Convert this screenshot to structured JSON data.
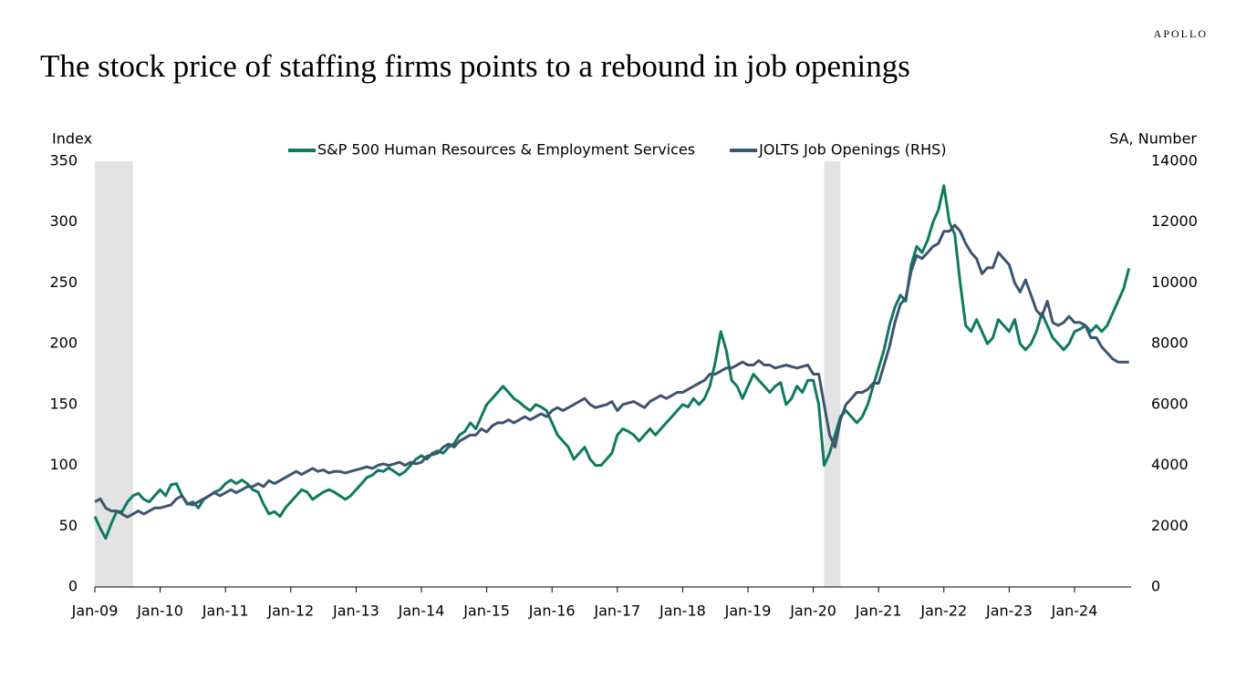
{
  "brand": "APOLLO",
  "chart_data": {
    "type": "line",
    "title": "The stock price of staffing firms points to a rebound in job openings",
    "ylabel": "Index",
    "y2label": "SA, Number",
    "x": [
      "2009-01",
      "2009-02",
      "2009-03",
      "2009-04",
      "2009-05",
      "2009-06",
      "2009-07",
      "2009-08",
      "2009-09",
      "2009-10",
      "2009-11",
      "2009-12",
      "2010-01",
      "2010-02",
      "2010-03",
      "2010-04",
      "2010-05",
      "2010-06",
      "2010-07",
      "2010-08",
      "2010-09",
      "2010-10",
      "2010-11",
      "2010-12",
      "2011-01",
      "2011-02",
      "2011-03",
      "2011-04",
      "2011-05",
      "2011-06",
      "2011-07",
      "2011-08",
      "2011-09",
      "2011-10",
      "2011-11",
      "2011-12",
      "2012-01",
      "2012-02",
      "2012-03",
      "2012-04",
      "2012-05",
      "2012-06",
      "2012-07",
      "2012-08",
      "2012-09",
      "2012-10",
      "2012-11",
      "2012-12",
      "2013-01",
      "2013-02",
      "2013-03",
      "2013-04",
      "2013-05",
      "2013-06",
      "2013-07",
      "2013-08",
      "2013-09",
      "2013-10",
      "2013-11",
      "2013-12",
      "2014-01",
      "2014-02",
      "2014-03",
      "2014-04",
      "2014-05",
      "2014-06",
      "2014-07",
      "2014-08",
      "2014-09",
      "2014-10",
      "2014-11",
      "2014-12",
      "2015-01",
      "2015-02",
      "2015-03",
      "2015-04",
      "2015-05",
      "2015-06",
      "2015-07",
      "2015-08",
      "2015-09",
      "2015-10",
      "2015-11",
      "2015-12",
      "2016-01",
      "2016-02",
      "2016-03",
      "2016-04",
      "2016-05",
      "2016-06",
      "2016-07",
      "2016-08",
      "2016-09",
      "2016-10",
      "2016-11",
      "2016-12",
      "2017-01",
      "2017-02",
      "2017-03",
      "2017-04",
      "2017-05",
      "2017-06",
      "2017-07",
      "2017-08",
      "2017-09",
      "2017-10",
      "2017-11",
      "2017-12",
      "2018-01",
      "2018-02",
      "2018-03",
      "2018-04",
      "2018-05",
      "2018-06",
      "2018-07",
      "2018-08",
      "2018-09",
      "2018-10",
      "2018-11",
      "2018-12",
      "2019-01",
      "2019-02",
      "2019-03",
      "2019-04",
      "2019-05",
      "2019-06",
      "2019-07",
      "2019-08",
      "2019-09",
      "2019-10",
      "2019-11",
      "2019-12",
      "2020-01",
      "2020-02",
      "2020-03",
      "2020-04",
      "2020-05",
      "2020-06",
      "2020-07",
      "2020-08",
      "2020-09",
      "2020-10",
      "2020-11",
      "2020-12",
      "2021-01",
      "2021-02",
      "2021-03",
      "2021-04",
      "2021-05",
      "2021-06",
      "2021-07",
      "2021-08",
      "2021-09",
      "2021-10",
      "2021-11",
      "2021-12",
      "2022-01",
      "2022-02",
      "2022-03",
      "2022-04",
      "2022-05",
      "2022-06",
      "2022-07",
      "2022-08",
      "2022-09",
      "2022-10",
      "2022-11",
      "2022-12",
      "2023-01",
      "2023-02",
      "2023-03",
      "2023-04",
      "2023-05",
      "2023-06",
      "2023-07",
      "2023-08",
      "2023-09",
      "2023-10",
      "2023-11",
      "2023-12",
      "2024-01",
      "2024-02",
      "2024-03",
      "2024-04",
      "2024-05",
      "2024-06",
      "2024-07",
      "2024-08",
      "2024-09",
      "2024-10",
      "2024-11"
    ],
    "series": [
      {
        "name": "S&P 500 Human Resources & Employment Services",
        "color": "#0e7a5f",
        "values": [
          58,
          48,
          40,
          52,
          62,
          62,
          70,
          75,
          77,
          72,
          70,
          75,
          80,
          75,
          84,
          85,
          75,
          68,
          70,
          65,
          72,
          75,
          78,
          80,
          85,
          88,
          85,
          88,
          85,
          80,
          78,
          68,
          60,
          62,
          58,
          65,
          70,
          75,
          80,
          78,
          72,
          75,
          78,
          80,
          78,
          75,
          72,
          75,
          80,
          85,
          90,
          92,
          96,
          95,
          98,
          95,
          92,
          95,
          100,
          105,
          108,
          105,
          110,
          112,
          110,
          115,
          118,
          125,
          128,
          135,
          130,
          140,
          150,
          155,
          160,
          165,
          160,
          155,
          152,
          148,
          145,
          150,
          148,
          145,
          135,
          125,
          120,
          115,
          105,
          110,
          115,
          105,
          100,
          100,
          105,
          110,
          125,
          130,
          128,
          125,
          120,
          125,
          130,
          125,
          130,
          135,
          140,
          145,
          150,
          148,
          155,
          150,
          155,
          165,
          185,
          210,
          195,
          170,
          165,
          155,
          165,
          175,
          170,
          165,
          160,
          165,
          168,
          150,
          155,
          165,
          160,
          170,
          170,
          150,
          100,
          110,
          125,
          140,
          145,
          140,
          135,
          140,
          150,
          165,
          180,
          195,
          215,
          230,
          240,
          235,
          265,
          280,
          275,
          285,
          300,
          310,
          330,
          300,
          290,
          250,
          215,
          210,
          220,
          210,
          200,
          205,
          220,
          215,
          210,
          220,
          200,
          195,
          200,
          210,
          225,
          215,
          205,
          200,
          195,
          200,
          210,
          212,
          215,
          210,
          215,
          210,
          215,
          225,
          235,
          245,
          262
        ]
      },
      {
        "name": "JOLTS Job Openings (RHS)",
        "color": "#3d5470",
        "axis": "y2",
        "values": [
          2800,
          2900,
          2600,
          2500,
          2500,
          2400,
          2300,
          2400,
          2500,
          2400,
          2500,
          2600,
          2600,
          2650,
          2700,
          2900,
          3000,
          2750,
          2700,
          2800,
          2900,
          3000,
          3100,
          3000,
          3100,
          3200,
          3100,
          3200,
          3300,
          3300,
          3400,
          3300,
          3500,
          3400,
          3500,
          3600,
          3700,
          3800,
          3700,
          3800,
          3900,
          3800,
          3850,
          3750,
          3800,
          3800,
          3750,
          3800,
          3850,
          3900,
          3950,
          3900,
          4000,
          4050,
          4000,
          4050,
          4100,
          4000,
          4100,
          4050,
          4100,
          4300,
          4350,
          4400,
          4600,
          4700,
          4600,
          4800,
          4900,
          5000,
          5000,
          5200,
          5100,
          5300,
          5400,
          5400,
          5500,
          5400,
          5500,
          5600,
          5500,
          5600,
          5700,
          5600,
          5800,
          5900,
          5800,
          5900,
          6000,
          6100,
          6200,
          6000,
          5900,
          5950,
          6000,
          6100,
          5800,
          6000,
          6050,
          6100,
          6000,
          5900,
          6100,
          6200,
          6300,
          6200,
          6300,
          6400,
          6400,
          6500,
          6600,
          6700,
          6800,
          7000,
          7000,
          7100,
          7200,
          7200,
          7300,
          7400,
          7300,
          7300,
          7450,
          7300,
          7300,
          7200,
          7250,
          7300,
          7250,
          7200,
          7250,
          7300,
          7000,
          7000,
          6000,
          5000,
          4600,
          5500,
          6000,
          6200,
          6400,
          6400,
          6500,
          6700,
          6700,
          7300,
          7900,
          8700,
          9300,
          9500,
          10400,
          10900,
          10800,
          11000,
          11200,
          11300,
          11700,
          11700,
          11900,
          11700,
          11300,
          11000,
          10800,
          10300,
          10500,
          10500,
          11000,
          10800,
          10600,
          10000,
          9700,
          10100,
          9600,
          9100,
          8900,
          9400,
          8700,
          8600,
          8700,
          8900,
          8700,
          8700,
          8600,
          8200,
          8200,
          7900,
          7700,
          7500,
          7400,
          7400,
          7400
        ]
      }
    ],
    "shaded_periods": [
      [
        "2009-01",
        "2009-08"
      ],
      [
        "2020-03",
        "2020-06"
      ]
    ],
    "shade_color": "#e3e3e3",
    "xticks": [
      {
        "value": "2009-01",
        "label": "Jan-09"
      },
      {
        "value": "2010-01",
        "label": "Jan-10"
      },
      {
        "value": "2011-01",
        "label": "Jan-11"
      },
      {
        "value": "2012-01",
        "label": "Jan-12"
      },
      {
        "value": "2013-01",
        "label": "Jan-13"
      },
      {
        "value": "2014-01",
        "label": "Jan-14"
      },
      {
        "value": "2015-01",
        "label": "Jan-15"
      },
      {
        "value": "2016-01",
        "label": "Jan-16"
      },
      {
        "value": "2017-01",
        "label": "Jan-17"
      },
      {
        "value": "2018-01",
        "label": "Jan-18"
      },
      {
        "value": "2019-01",
        "label": "Jan-19"
      },
      {
        "value": "2020-01",
        "label": "Jan-20"
      },
      {
        "value": "2021-01",
        "label": "Jan-21"
      },
      {
        "value": "2022-01",
        "label": "Jan-22"
      },
      {
        "value": "2023-01",
        "label": "Jan-23"
      },
      {
        "value": "2024-01",
        "label": "Jan-24"
      }
    ],
    "ylim": [
      0,
      350
    ],
    "yticks": [
      0,
      50,
      100,
      150,
      200,
      250,
      300,
      350
    ],
    "y2lim": [
      0,
      14000
    ],
    "y2ticks": [
      0,
      2000,
      4000,
      6000,
      8000,
      10000,
      12000,
      14000
    ],
    "grid": false
  }
}
